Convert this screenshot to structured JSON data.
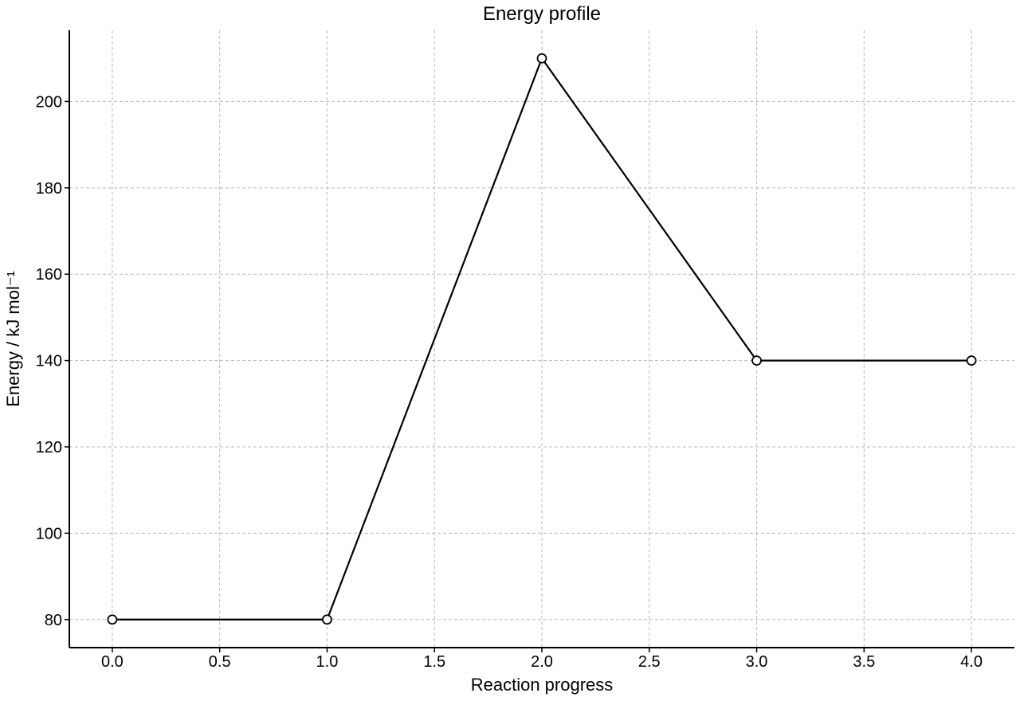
{
  "chart_data": {
    "type": "line",
    "title": "Energy profile",
    "xlabel": "Reaction progress",
    "ylabel": "Energy / kJ mol⁻¹",
    "xlim": [
      -0.2,
      4.2
    ],
    "ylim": [
      73.5,
      216.5
    ],
    "xticks": [
      0.0,
      0.5,
      1.0,
      1.5,
      2.0,
      2.5,
      3.0,
      3.5,
      4.0
    ],
    "xtick_labels": [
      "0.0",
      "0.5",
      "1.0",
      "1.5",
      "2.0",
      "2.5",
      "3.0",
      "3.5",
      "4.0"
    ],
    "yticks": [
      80,
      100,
      120,
      140,
      160,
      180,
      200
    ],
    "ytick_labels": [
      "80",
      "100",
      "120",
      "140",
      "160",
      "180",
      "200"
    ],
    "grid": true,
    "series": [
      {
        "x": [
          0,
          1,
          2,
          3,
          4
        ],
        "y": [
          80,
          80,
          210,
          140,
          140
        ],
        "color": "#000000",
        "marker": "open-circle"
      }
    ]
  }
}
